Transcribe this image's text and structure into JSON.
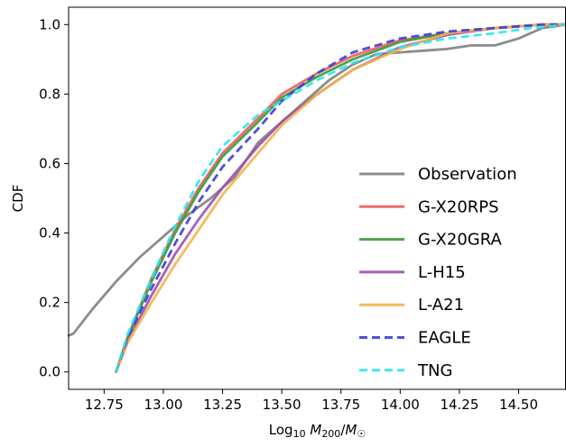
{
  "chart_data": {
    "type": "line",
    "xlabel": "Log₁₀ M₂₀₀/M☉",
    "ylabel": "CDF",
    "xlim": [
      12.6,
      14.7
    ],
    "ylim": [
      -0.05,
      1.05
    ],
    "xticks": [
      "12.75",
      "13.00",
      "13.25",
      "13.50",
      "13.75",
      "14.00",
      "14.25",
      "14.50"
    ],
    "yticks": [
      "0.0",
      "0.2",
      "0.4",
      "0.6",
      "0.8",
      "1.0"
    ],
    "grid": false,
    "legend_position": "lower right",
    "series": [
      {
        "name": "Observation",
        "color": "#808080",
        "style": "solid",
        "points": [
          [
            12.6,
            0.105
          ],
          [
            12.62,
            0.11
          ],
          [
            12.7,
            0.18
          ],
          [
            12.8,
            0.26
          ],
          [
            12.9,
            0.33
          ],
          [
            13.0,
            0.39
          ],
          [
            13.1,
            0.45
          ],
          [
            13.2,
            0.5
          ],
          [
            13.3,
            0.56
          ],
          [
            13.4,
            0.66
          ],
          [
            13.5,
            0.72
          ],
          [
            13.6,
            0.78
          ],
          [
            13.7,
            0.84
          ],
          [
            13.8,
            0.885
          ],
          [
            13.9,
            0.915
          ],
          [
            14.0,
            0.92
          ],
          [
            14.1,
            0.925
          ],
          [
            14.2,
            0.93
          ],
          [
            14.3,
            0.94
          ],
          [
            14.4,
            0.94
          ],
          [
            14.5,
            0.96
          ],
          [
            14.6,
            0.99
          ],
          [
            14.7,
            1.0
          ]
        ]
      },
      {
        "name": "G-X20RPS",
        "color": "#f05c5c",
        "style": "solid",
        "points": [
          [
            12.8,
            0.0
          ],
          [
            12.85,
            0.1
          ],
          [
            12.95,
            0.27
          ],
          [
            13.05,
            0.41
          ],
          [
            13.15,
            0.53
          ],
          [
            13.25,
            0.63
          ],
          [
            13.4,
            0.73
          ],
          [
            13.5,
            0.8
          ],
          [
            13.65,
            0.86
          ],
          [
            13.8,
            0.91
          ],
          [
            14.0,
            0.955
          ],
          [
            14.2,
            0.975
          ],
          [
            14.4,
            0.99
          ],
          [
            14.6,
            1.0
          ],
          [
            14.7,
            1.0
          ]
        ]
      },
      {
        "name": "G-X20GRA",
        "color": "#3a9a3a",
        "style": "solid",
        "points": [
          [
            12.8,
            0.0
          ],
          [
            12.85,
            0.1
          ],
          [
            12.95,
            0.26
          ],
          [
            13.05,
            0.4
          ],
          [
            13.15,
            0.52
          ],
          [
            13.25,
            0.62
          ],
          [
            13.4,
            0.72
          ],
          [
            13.5,
            0.79
          ],
          [
            13.65,
            0.85
          ],
          [
            13.8,
            0.9
          ],
          [
            14.0,
            0.95
          ],
          [
            14.2,
            0.975
          ],
          [
            14.4,
            0.99
          ],
          [
            14.6,
            1.0
          ],
          [
            14.7,
            1.0
          ]
        ]
      },
      {
        "name": "L-H15",
        "color": "#9d4fb0",
        "style": "solid",
        "points": [
          [
            12.8,
            0.0
          ],
          [
            12.85,
            0.09
          ],
          [
            12.95,
            0.22
          ],
          [
            13.05,
            0.34
          ],
          [
            13.15,
            0.44
          ],
          [
            13.25,
            0.53
          ],
          [
            13.4,
            0.65
          ],
          [
            13.5,
            0.72
          ],
          [
            13.65,
            0.8
          ],
          [
            13.8,
            0.87
          ],
          [
            14.0,
            0.935
          ],
          [
            14.2,
            0.97
          ],
          [
            14.4,
            0.99
          ],
          [
            14.6,
            1.0
          ],
          [
            14.7,
            1.0
          ]
        ]
      },
      {
        "name": "L-A21",
        "color": "#f5b34a",
        "style": "solid",
        "points": [
          [
            12.8,
            0.0
          ],
          [
            12.85,
            0.085
          ],
          [
            12.95,
            0.2
          ],
          [
            13.05,
            0.31
          ],
          [
            13.15,
            0.41
          ],
          [
            13.25,
            0.51
          ],
          [
            13.4,
            0.63
          ],
          [
            13.5,
            0.71
          ],
          [
            13.65,
            0.8
          ],
          [
            13.8,
            0.87
          ],
          [
            14.0,
            0.93
          ],
          [
            14.2,
            0.975
          ],
          [
            14.4,
            0.99
          ],
          [
            14.6,
            1.0
          ],
          [
            14.7,
            1.0
          ]
        ]
      },
      {
        "name": "EAGLE",
        "color": "#3b3bdc",
        "style": "dashed",
        "points": [
          [
            12.8,
            0.0
          ],
          [
            12.85,
            0.1
          ],
          [
            12.95,
            0.24
          ],
          [
            13.05,
            0.37
          ],
          [
            13.15,
            0.49
          ],
          [
            13.25,
            0.59
          ],
          [
            13.4,
            0.7
          ],
          [
            13.5,
            0.78
          ],
          [
            13.65,
            0.86
          ],
          [
            13.8,
            0.92
          ],
          [
            14.0,
            0.96
          ],
          [
            14.2,
            0.98
          ],
          [
            14.4,
            0.99
          ],
          [
            14.6,
            1.0
          ],
          [
            14.7,
            1.0
          ]
        ]
      },
      {
        "name": "TNG",
        "color": "#2ee6f0",
        "style": "dashed",
        "points": [
          [
            12.8,
            0.0
          ],
          [
            12.85,
            0.11
          ],
          [
            12.95,
            0.27
          ],
          [
            13.05,
            0.42
          ],
          [
            13.15,
            0.55
          ],
          [
            13.25,
            0.65
          ],
          [
            13.4,
            0.74
          ],
          [
            13.5,
            0.78
          ],
          [
            13.65,
            0.84
          ],
          [
            13.8,
            0.89
          ],
          [
            14.0,
            0.935
          ],
          [
            14.2,
            0.96
          ],
          [
            14.4,
            0.975
          ],
          [
            14.55,
            0.99
          ],
          [
            14.7,
            1.0
          ]
        ]
      }
    ]
  }
}
